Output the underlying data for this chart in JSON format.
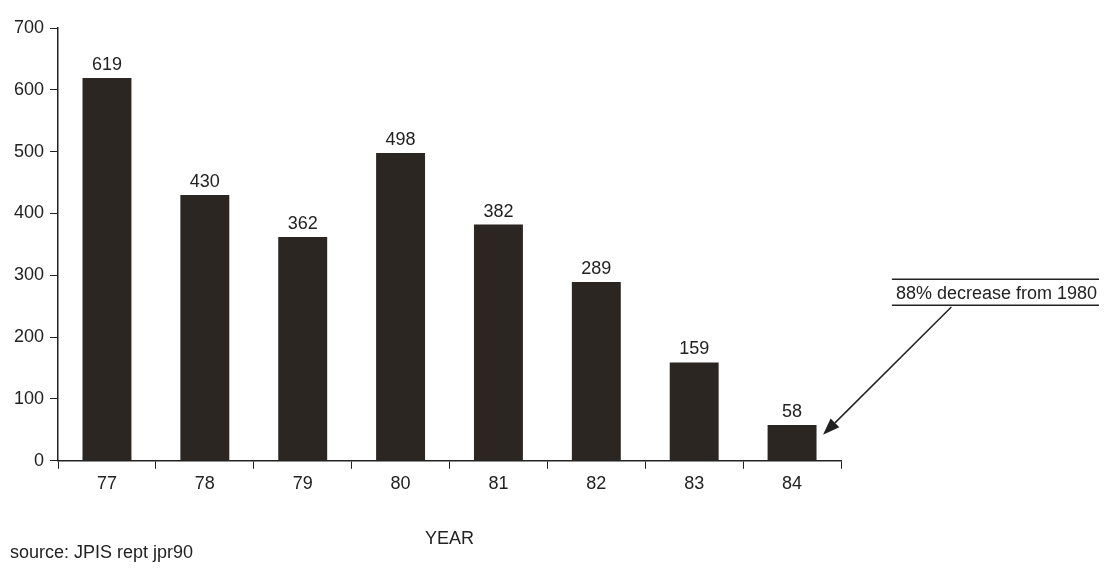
{
  "chart_data": {
    "type": "bar",
    "xlabel": "YEAR",
    "categories": [
      "77",
      "78",
      "79",
      "80",
      "81",
      "82",
      "83",
      "84"
    ],
    "values": [
      619,
      430,
      362,
      498,
      382,
      289,
      159,
      58
    ],
    "color": "#2b2622",
    "ylim": [
      0,
      700
    ],
    "yticks": [
      0,
      100,
      200,
      300,
      400,
      500,
      600,
      700
    ],
    "grid": false,
    "data_labels": true,
    "annotations": [
      "88% decrease from 1980",
      "source: JPIS rept jpr90"
    ]
  }
}
